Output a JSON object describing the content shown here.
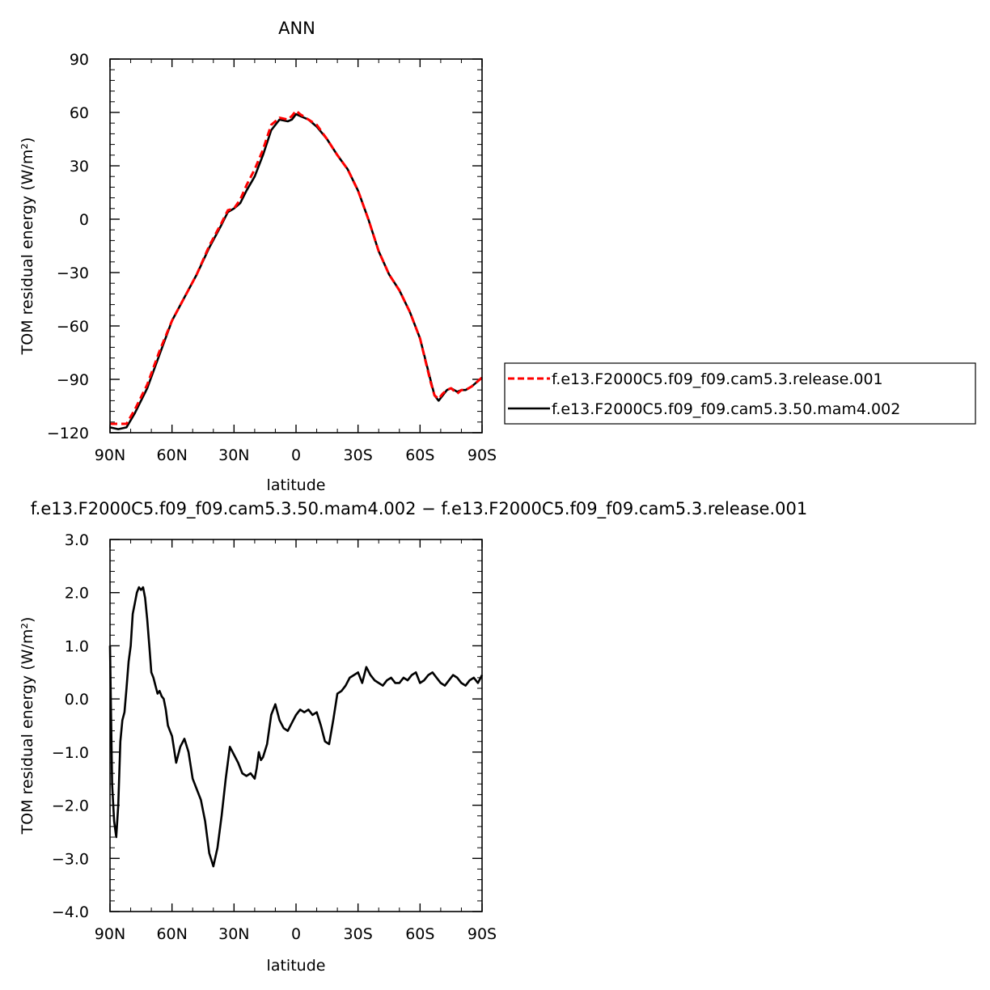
{
  "chart_data": [
    {
      "type": "line",
      "title": "ANN",
      "xlabel": "latitude",
      "ylabel": "TOM residual energy (W/m²)",
      "xlim": [
        90,
        -90
      ],
      "ylim": [
        -120,
        90
      ],
      "xticks": [
        90,
        60,
        30,
        0,
        -30,
        -60,
        -90
      ],
      "xtick_labels": [
        "90N",
        "60N",
        "30N",
        "0",
        "30S",
        "60S",
        "90S"
      ],
      "yticks": [
        90,
        60,
        30,
        0,
        -30,
        -60,
        -90,
        -120
      ],
      "ytick_labels": [
        "90",
        "60",
        "30",
        "0",
        "−30",
        "−60",
        "−90",
        "−120"
      ],
      "legend_position": "right",
      "x": [
        90,
        86,
        82,
        78,
        72,
        66,
        60,
        54,
        48,
        42,
        36,
        33,
        30,
        27,
        24,
        20,
        16,
        12,
        8,
        4,
        2,
        0,
        -2,
        -6,
        -10,
        -15,
        -20,
        -25,
        -30,
        -35,
        -40,
        -45,
        -50,
        -55,
        -60,
        -65,
        -67,
        -69,
        -71,
        -73,
        -75,
        -78,
        -80,
        -82,
        -85,
        -88,
        -90
      ],
      "series": [
        {
          "name": "f.e13.F2000C5.f09_f09.cam5.3.release.001",
          "color": "#ff0000",
          "dash": "dashed",
          "values": [
            -115,
            -115,
            -115,
            -107,
            -93,
            -74,
            -57,
            -44,
            -31,
            -15,
            -2,
            5,
            6,
            11,
            19,
            28,
            39,
            53,
            57,
            56,
            58,
            61,
            59,
            56,
            53,
            45,
            36,
            28,
            16,
            0,
            -18,
            -31,
            -40,
            -52,
            -67,
            -91,
            -99,
            -101,
            -98,
            -96,
            -95,
            -98,
            -96,
            -96,
            -94,
            -91,
            -89
          ]
        },
        {
          "name": "f.e13.F2000C5.f09_f09.cam5.3.50.mam4.002",
          "color": "#000000",
          "dash": "solid",
          "values": [
            -117,
            -118,
            -117,
            -109,
            -95,
            -76,
            -57,
            -44,
            -31,
            -16,
            -3,
            4,
            6,
            9,
            16,
            24,
            36,
            50,
            56,
            55,
            56,
            59,
            58,
            56,
            52,
            45,
            36,
            28,
            16,
            0,
            -18,
            -31,
            -40,
            -52,
            -67,
            -90,
            -99,
            -102,
            -99,
            -96,
            -95,
            -97,
            -96,
            -96,
            -94,
            -91,
            -89
          ]
        }
      ]
    },
    {
      "type": "line",
      "title": "f.e13.F2000C5.f09_f09.cam5.3.50.mam4.002 − f.e13.F2000C5.f09_f09.cam5.3.release.001",
      "xlabel": "latitude",
      "ylabel": "TOM residual energy (W/m²)",
      "xlim": [
        90,
        -90
      ],
      "ylim": [
        -4.0,
        3.0
      ],
      "xticks": [
        90,
        60,
        30,
        0,
        -30,
        -60,
        -90
      ],
      "xtick_labels": [
        "90N",
        "60N",
        "30N",
        "0",
        "30S",
        "60S",
        "90S"
      ],
      "yticks": [
        3.0,
        2.0,
        1.0,
        0.0,
        -1.0,
        -2.0,
        -3.0,
        -4.0
      ],
      "ytick_labels": [
        "3.0",
        "2.0",
        "1.0",
        "0.0",
        "−1.0",
        "−2.0",
        "−3.0",
        "−4.0"
      ],
      "x": [
        90,
        89,
        88,
        87,
        86,
        85,
        84,
        83,
        82,
        81,
        80,
        79,
        78,
        77,
        76,
        75,
        74,
        73,
        72,
        71,
        70,
        69,
        68,
        67,
        66,
        65,
        64,
        63,
        62,
        61,
        60,
        58,
        56,
        54,
        52,
        50,
        48,
        46,
        44,
        42,
        40,
        38,
        36,
        34,
        32,
        30,
        28,
        26,
        24,
        22,
        20,
        19,
        18,
        17,
        16,
        14,
        12,
        10,
        8,
        6,
        4,
        2,
        0,
        -2,
        -4,
        -6,
        -8,
        -10,
        -12,
        -14,
        -16,
        -18,
        -20,
        -22,
        -24,
        -26,
        -28,
        -30,
        -32,
        -34,
        -36,
        -38,
        -40,
        -42,
        -44,
        -46,
        -48,
        -50,
        -52,
        -54,
        -56,
        -58,
        -60,
        -62,
        -64,
        -66,
        -68,
        -70,
        -72,
        -74,
        -76,
        -78,
        -80,
        -82,
        -84,
        -86,
        -88,
        -90
      ],
      "series": [
        {
          "name": "",
          "color": "#000000",
          "dash": "solid",
          "values": [
            1.0,
            -1.6,
            -2.3,
            -2.6,
            -2.0,
            -0.8,
            -0.4,
            -0.25,
            0.2,
            0.7,
            1.0,
            1.6,
            1.8,
            2.0,
            2.1,
            2.05,
            2.1,
            1.9,
            1.5,
            1.0,
            0.5,
            0.4,
            0.25,
            0.1,
            0.15,
            0.05,
            0.0,
            -0.2,
            -0.5,
            -0.6,
            -0.7,
            -1.2,
            -0.9,
            -0.75,
            -1.0,
            -1.5,
            -1.7,
            -1.9,
            -2.3,
            -2.9,
            -3.15,
            -2.8,
            -2.2,
            -1.5,
            -0.9,
            -1.05,
            -1.2,
            -1.4,
            -1.45,
            -1.4,
            -1.5,
            -1.3,
            -1.0,
            -1.15,
            -1.1,
            -0.85,
            -0.3,
            -0.1,
            -0.4,
            -0.55,
            -0.6,
            -0.45,
            -0.3,
            -0.2,
            -0.25,
            -0.2,
            -0.3,
            -0.25,
            -0.5,
            -0.8,
            -0.85,
            -0.4,
            0.1,
            0.15,
            0.25,
            0.4,
            0.45,
            0.5,
            0.3,
            0.6,
            0.45,
            0.35,
            0.3,
            0.25,
            0.35,
            0.4,
            0.3,
            0.3,
            0.4,
            0.35,
            0.45,
            0.5,
            0.3,
            0.35,
            0.45,
            0.5,
            0.4,
            0.3,
            0.25,
            0.35,
            0.45,
            0.4,
            0.3,
            0.25,
            0.35,
            0.4,
            0.3,
            0.45
          ]
        }
      ]
    }
  ]
}
